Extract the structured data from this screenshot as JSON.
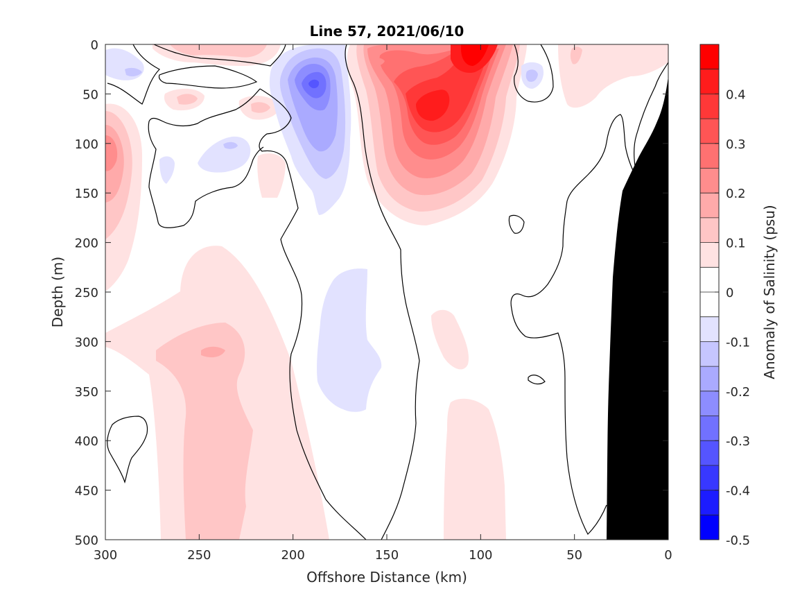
{
  "chart_data": {
    "type": "heatmap",
    "subtype": "filled-contour section",
    "title": "Line 57, 2021/06/10",
    "xlabel": "Offshore Distance (km)",
    "ylabel": "Depth (m)",
    "colorbar_label": "Anomaly of Salinity (psu)",
    "xlim": [
      300,
      0
    ],
    "ylim": [
      0,
      500
    ],
    "x_reversed": true,
    "y_reversed": true,
    "xticks": [
      "300",
      "250",
      "200",
      "150",
      "100",
      "50",
      "0"
    ],
    "yticks": [
      "0",
      "50",
      "100",
      "150",
      "200",
      "250",
      "300",
      "350",
      "400",
      "450",
      "500"
    ],
    "color_range": [
      -0.5,
      0.5
    ],
    "colorbar_ticks": [
      "0.4",
      "0.3",
      "0.2",
      "0.1",
      "0",
      "-0.1",
      "-0.2",
      "-0.3",
      "-0.4",
      "-0.5"
    ],
    "colorbar_tick_values": [
      0.4,
      0.3,
      0.2,
      0.1,
      0,
      -0.1,
      -0.2,
      -0.3,
      -0.4,
      -0.5
    ],
    "colorbar_levels": [
      {
        "value": 0.45,
        "color": "#ff0000"
      },
      {
        "value": 0.4,
        "color": "#ff1c1c"
      },
      {
        "value": 0.35,
        "color": "#ff3838"
      },
      {
        "value": 0.3,
        "color": "#ff5555"
      },
      {
        "value": 0.25,
        "color": "#ff7171"
      },
      {
        "value": 0.2,
        "color": "#ff8d8d"
      },
      {
        "value": 0.15,
        "color": "#ffaaaa"
      },
      {
        "value": 0.1,
        "color": "#ffc6c6"
      },
      {
        "value": 0.05,
        "color": "#ffe2e2"
      },
      {
        "value": 0.0,
        "color": "#ffffff"
      },
      {
        "value": -0.05,
        "color": "#ffffff"
      },
      {
        "value": -0.1,
        "color": "#e2e2ff"
      },
      {
        "value": -0.15,
        "color": "#c6c6ff"
      },
      {
        "value": -0.2,
        "color": "#aaaaff"
      },
      {
        "value": -0.25,
        "color": "#8d8dff"
      },
      {
        "value": -0.3,
        "color": "#7171ff"
      },
      {
        "value": -0.35,
        "color": "#5555ff"
      },
      {
        "value": -0.4,
        "color": "#3838ff"
      },
      {
        "value": -0.45,
        "color": "#1c1cff"
      },
      {
        "value": -0.5,
        "color": "#0000ff"
      }
    ],
    "anomaly_features": [
      {
        "name": "surface-high",
        "x": 103,
        "depth": 12,
        "value": 0.45
      },
      {
        "name": "subsurface-high",
        "x": 128,
        "depth": 75,
        "value": 0.4
      },
      {
        "name": "nearshore-positive",
        "x": 148,
        "depth": 20,
        "value": 0.2
      },
      {
        "name": "offshore-edge-positive",
        "x": 293,
        "depth": 100,
        "value": 0.2
      },
      {
        "name": "deep-positive-offshore",
        "x": 245,
        "depth": 310,
        "value": 0.15
      },
      {
        "name": "deep-positive-offshore-lower",
        "x": 245,
        "depth": 420,
        "value": 0.1
      },
      {
        "name": "upper-negative",
        "x": 185,
        "depth": 40,
        "value": -0.3
      },
      {
        "name": "mid-negative",
        "x": 175,
        "depth": 320,
        "value": -0.1
      },
      {
        "name": "small-negative",
        "x": 70,
        "depth": 35,
        "value": -0.1
      },
      {
        "name": "surface-positive-offshore",
        "x": 240,
        "depth": 10,
        "value": 0.1
      }
    ],
    "zero_contour": true,
    "bathymetry_color": "#000000",
    "colors": {
      "text": "#262626",
      "axis": "#262626",
      "contour": "#000000",
      "land": "#000000"
    }
  }
}
